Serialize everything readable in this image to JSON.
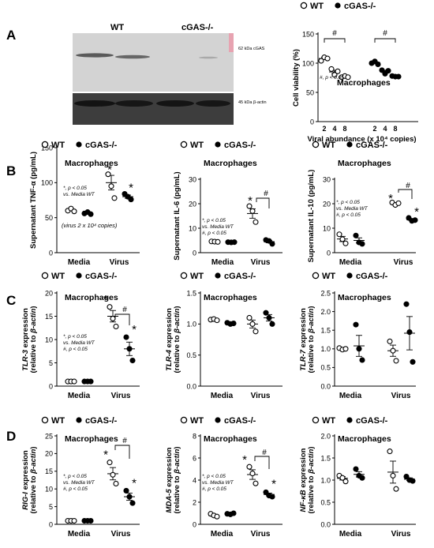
{
  "figure": {
    "panels": [
      "A",
      "B",
      "C",
      "D"
    ],
    "legend": {
      "wt": "WT",
      "ko": "cGAS-/-"
    }
  },
  "blot": {
    "lane_headers": [
      "WT",
      "cGAS-/-"
    ],
    "band_labels": [
      "62 kDa cGAS",
      "45 kDa β-actin"
    ]
  },
  "chart_data": [
    {
      "id": "A",
      "type": "scatter",
      "title": "Macrophages",
      "ylabel": "Cell viability (%)",
      "xlabel": "Viral abundance (x 10⁴ copies)",
      "x_ticks": [
        "2",
        "4",
        "8",
        "2",
        "4",
        "8"
      ],
      "y_ticks": [
        "0",
        "50",
        "100",
        "150"
      ],
      "ylim": [
        0,
        150
      ],
      "note_lines": [
        "#, p < 0.05"
      ],
      "significance": [
        "#",
        "#"
      ],
      "series": [
        {
          "name": "WT",
          "marker": "open-circle",
          "groups": [
            {
              "label": "2",
              "points": [
                104,
                110,
                108
              ],
              "mean": 108
            },
            {
              "label": "4",
              "points": [
                90,
                80,
                86
              ],
              "mean": 85
            },
            {
              "label": "8",
              "points": [
                76,
                78,
                76
              ],
              "mean": 77
            }
          ]
        },
        {
          "name": "cGAS-/-",
          "marker": "filled-circle",
          "groups": [
            {
              "label": "2",
              "points": [
                100,
                103,
                98
              ],
              "mean": 101
            },
            {
              "label": "4",
              "points": [
                88,
                82,
                87
              ],
              "mean": 86
            },
            {
              "label": "8",
              "points": [
                78,
                77,
                77
              ],
              "mean": 77
            }
          ]
        }
      ]
    },
    {
      "id": "B1",
      "type": "scatter",
      "title": "Macrophages",
      "ylabel": "Supernatant TNF-α (pg/mL)",
      "categories": [
        "Media",
        "Virus"
      ],
      "y_ticks": [
        "0",
        "50",
        "100",
        "150"
      ],
      "ylim": [
        0,
        150
      ],
      "note_lines": [
        "*, p < 0.05",
        "vs. Media WT"
      ],
      "footnote": "(virus 2 x 10⁴ copies)",
      "significance": [
        "*",
        "*"
      ],
      "series": [
        {
          "name": "WT",
          "marker": "open-circle",
          "groups": [
            {
              "label": "Media",
              "points": [
                60,
                63,
                59
              ],
              "mean": 61
            },
            {
              "label": "Virus",
              "points": [
                112,
                95,
                78
              ],
              "mean": 100
            }
          ]
        },
        {
          "name": "cGAS-/-",
          "marker": "filled-circle",
          "groups": [
            {
              "label": "Media",
              "points": [
                56,
                58,
                55
              ],
              "mean": 56
            },
            {
              "label": "Virus",
              "points": [
                84,
                80,
                76
              ],
              "mean": 80
            }
          ]
        }
      ]
    },
    {
      "id": "B2",
      "type": "scatter",
      "title": "Macrophages",
      "ylabel": "Supernatant IL-6 (pg/mL)",
      "categories": [
        "Media",
        "Virus"
      ],
      "y_ticks": [
        "0",
        "10",
        "20",
        "30"
      ],
      "ylim": [
        0,
        30
      ],
      "note_lines": [
        "*, p < 0.05",
        "vs. Media WT",
        "#, p < 0.05"
      ],
      "significance": [
        "*",
        "#"
      ],
      "series": [
        {
          "name": "WT",
          "marker": "open-circle",
          "groups": [
            {
              "label": "Media",
              "points": [
                4.6,
                4.5,
                4.4
              ],
              "mean": 4.5
            },
            {
              "label": "Virus",
              "points": [
                19,
                17,
                12.5
              ],
              "mean": 16
            }
          ]
        },
        {
          "name": "cGAS-/-",
          "marker": "filled-circle",
          "groups": [
            {
              "label": "Media",
              "points": [
                4.3,
                4.2,
                4.3
              ],
              "mean": 4.3
            },
            {
              "label": "Virus",
              "points": [
                5.2,
                4.8,
                3.6
              ],
              "mean": 4.5
            }
          ]
        }
      ]
    },
    {
      "id": "B3",
      "type": "scatter",
      "title": "Macrophages",
      "ylabel": "Supernatant IL-10 (pg/mL)",
      "categories": [
        "Media",
        "Virus"
      ],
      "y_ticks": [
        "0",
        "10",
        "20",
        "30"
      ],
      "ylim": [
        0,
        30
      ],
      "note_lines": [
        "*, p < 0.05",
        "vs. Media WT",
        "#, p < 0.05"
      ],
      "significance": [
        "*",
        "#",
        "*"
      ],
      "series": [
        {
          "name": "WT",
          "marker": "open-circle",
          "groups": [
            {
              "label": "Media",
              "points": [
                7.5,
                5.5,
                3.8
              ],
              "mean": 5.6
            },
            {
              "label": "Virus",
              "points": [
                20.5,
                19.5,
                20.2
              ],
              "mean": 20
            }
          ]
        },
        {
          "name": "cGAS-/-",
          "marker": "filled-circle",
          "groups": [
            {
              "label": "Media",
              "points": [
                7,
                4.2,
                3.6
              ],
              "mean": 5
            },
            {
              "label": "Virus",
              "points": [
                14.2,
                13,
                13.3
              ],
              "mean": 13.5
            }
          ]
        }
      ]
    },
    {
      "id": "C1",
      "type": "scatter",
      "title": "Macrophages",
      "ylabel_gene": "TLR-3",
      "ylabel_rest": " expression",
      "ylabel2_pre": "(relative to ",
      "ylabel2_gene": "β-actin",
      "ylabel2_post": ")",
      "categories": [
        "Media",
        "Virus"
      ],
      "y_ticks": [
        "0",
        "5",
        "10",
        "15",
        "20"
      ],
      "ylim": [
        0,
        20
      ],
      "note_lines": [
        "*, p < 0.05",
        "vs. Media WT",
        "#, p < 0.05"
      ],
      "significance": [
        "*",
        "#",
        "*"
      ],
      "series": [
        {
          "name": "WT",
          "marker": "open-circle",
          "groups": [
            {
              "label": "Media",
              "points": [
                1,
                1,
                1
              ],
              "mean": 1
            },
            {
              "label": "Virus",
              "points": [
                17,
                14.5,
                12.8
              ],
              "mean": 15
            }
          ]
        },
        {
          "name": "cGAS-/-",
          "marker": "filled-circle",
          "groups": [
            {
              "label": "Media",
              "points": [
                1,
                1,
                1
              ],
              "mean": 1
            },
            {
              "label": "Virus",
              "points": [
                10.5,
                8,
                5.5
              ],
              "mean": 8
            }
          ]
        }
      ]
    },
    {
      "id": "C2",
      "type": "scatter",
      "title": "Macrophages",
      "ylabel_gene": "TLR-4",
      "ylabel_rest": " expression",
      "ylabel2_pre": "(relative to ",
      "ylabel2_gene": "β-actin",
      "ylabel2_post": ")",
      "categories": [
        "Media",
        "Virus"
      ],
      "y_ticks": [
        "0.0",
        "0.5",
        "1.0",
        "1.5"
      ],
      "ylim": [
        0,
        1.5
      ],
      "series": [
        {
          "name": "WT",
          "marker": "open-circle",
          "groups": [
            {
              "label": "Media",
              "points": [
                1.07,
                1.08,
                1.06
              ],
              "mean": 1.07
            },
            {
              "label": "Virus",
              "points": [
                1.1,
                1.0,
                0.88
              ],
              "mean": 1.0
            }
          ]
        },
        {
          "name": "cGAS-/-",
          "marker": "filled-circle",
          "groups": [
            {
              "label": "Media",
              "points": [
                1.02,
                1.0,
                1.01
              ],
              "mean": 1.0
            },
            {
              "label": "Virus",
              "points": [
                1.18,
                1.1,
                1.0
              ],
              "mean": 1.1
            }
          ]
        }
      ]
    },
    {
      "id": "C3",
      "type": "scatter",
      "title": "Macrophages",
      "ylabel_gene": "TLR-7",
      "ylabel_rest": " expression",
      "ylabel2_pre": "(relative to ",
      "ylabel2_gene": "β-actin",
      "ylabel2_post": ")",
      "categories": [
        "Media",
        "Virus"
      ],
      "y_ticks": [
        "0.0",
        "0.5",
        "1.0",
        "1.5",
        "2.0",
        "2.5"
      ],
      "ylim": [
        0,
        2.5
      ],
      "series": [
        {
          "name": "WT",
          "marker": "open-circle",
          "groups": [
            {
              "label": "Media",
              "points": [
                1.02,
                0.98,
                1.0
              ],
              "mean": 1.0
            },
            {
              "label": "Virus",
              "points": [
                1.2,
                0.95,
                0.68
              ],
              "mean": 0.95
            }
          ]
        },
        {
          "name": "cGAS-/-",
          "marker": "filled-circle",
          "groups": [
            {
              "label": "Media",
              "points": [
                1.65,
                1.0,
                0.7
              ],
              "mean": 1.08
            },
            {
              "label": "Virus",
              "points": [
                2.2,
                1.45,
                0.65
              ],
              "mean": 1.42
            }
          ]
        }
      ]
    },
    {
      "id": "D1",
      "type": "scatter",
      "title": "Macrophages",
      "ylabel_gene": "RIG-I",
      "ylabel_rest": " expression",
      "ylabel2_pre": "(relative to ",
      "ylabel2_gene": "β-actin",
      "ylabel2_post": ")",
      "categories": [
        "Media",
        "Virus"
      ],
      "y_ticks": [
        "0",
        "5",
        "10",
        "15",
        "20",
        "25"
      ],
      "ylim": [
        0,
        25
      ],
      "note_lines": [
        "*, p < 0.05",
        "vs. Media WT",
        "#, p < 0.05"
      ],
      "significance": [
        "*",
        "#",
        "*"
      ],
      "series": [
        {
          "name": "WT",
          "marker": "open-circle",
          "groups": [
            {
              "label": "Media",
              "points": [
                1,
                1,
                1
              ],
              "mean": 1
            },
            {
              "label": "Virus",
              "points": [
                17.5,
                14,
                11.5
              ],
              "mean": 14.3
            }
          ]
        },
        {
          "name": "cGAS-/-",
          "marker": "filled-circle",
          "groups": [
            {
              "label": "Media",
              "points": [
                1,
                1,
                1
              ],
              "mean": 1
            },
            {
              "label": "Virus",
              "points": [
                9.5,
                7.8,
                6
              ],
              "mean": 7.8
            }
          ]
        }
      ]
    },
    {
      "id": "D2",
      "type": "scatter",
      "title": "Macrophages",
      "ylabel_gene": "MDA-5",
      "ylabel_rest": " expression",
      "ylabel2_pre": "(relative to ",
      "ylabel2_gene": "β-actin",
      "ylabel2_post": ")",
      "categories": [
        "Media",
        "Virus"
      ],
      "y_ticks": [
        "0",
        "2",
        "4",
        "6",
        "8"
      ],
      "ylim": [
        0,
        8
      ],
      "note_lines": [
        "*, p < 0.05",
        "vs. Media WT",
        "#, p < 0.05"
      ],
      "significance": [
        "*",
        "#",
        "*"
      ],
      "series": [
        {
          "name": "WT",
          "marker": "open-circle",
          "groups": [
            {
              "label": "Media",
              "points": [
                0.95,
                0.8,
                0.7
              ],
              "mean": 0.8
            },
            {
              "label": "Virus",
              "points": [
                5.2,
                4.6,
                3.7
              ],
              "mean": 4.5
            }
          ]
        },
        {
          "name": "cGAS-/-",
          "marker": "filled-circle",
          "groups": [
            {
              "label": "Media",
              "points": [
                0.95,
                0.9,
                1.0
              ],
              "mean": 0.95
            },
            {
              "label": "Virus",
              "points": [
                2.9,
                2.6,
                2.5
              ],
              "mean": 2.7
            }
          ]
        }
      ]
    },
    {
      "id": "D3",
      "type": "scatter",
      "title": "Macrophages",
      "ylabel_gene": "NF-κB",
      "ylabel_rest": " expression",
      "ylabel2_pre": "(relative to ",
      "ylabel2_gene": "β-actin",
      "ylabel2_post": ")",
      "categories": [
        "Media",
        "Virus"
      ],
      "y_ticks": [
        "0.0",
        "0.5",
        "1.0",
        "1.5",
        "2.0"
      ],
      "ylim": [
        0,
        2
      ],
      "series": [
        {
          "name": "WT",
          "marker": "open-circle",
          "groups": [
            {
              "label": "Media",
              "points": [
                1.1,
                1.05,
                0.97
              ],
              "mean": 1.04
            },
            {
              "label": "Virus",
              "points": [
                1.65,
                1.1,
                0.8
              ],
              "mean": 1.18
            }
          ]
        },
        {
          "name": "cGAS-/-",
          "marker": "filled-circle",
          "groups": [
            {
              "label": "Media",
              "points": [
                1.25,
                1.1,
                1.05
              ],
              "mean": 1.13
            },
            {
              "label": "Virus",
              "points": [
                1.08,
                1.0,
                0.98
              ],
              "mean": 1.02
            }
          ]
        }
      ]
    }
  ]
}
